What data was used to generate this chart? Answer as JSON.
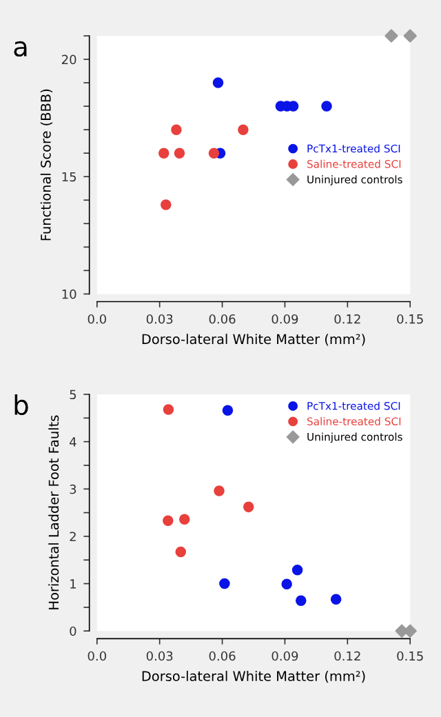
{
  "chart_data": [
    {
      "type": "scatter",
      "annotations": [
        {
          "text": "a"
        }
      ],
      "xlabel": "Dorso-lateral White Matter (mm²)",
      "ylabel": "Functional Score (BBB)",
      "xlim": [
        0,
        0.15
      ],
      "ylim": [
        10,
        21
      ],
      "xticks": [
        {
          "value": 0,
          "label": "0.0"
        },
        0.03,
        0.06,
        0.09,
        0.12,
        0.15
      ],
      "yticks": [
        10,
        {
          "value": 11,
          "label": null
        },
        {
          "value": 12,
          "label": null
        },
        {
          "value": 13,
          "label": null
        },
        {
          "value": 14,
          "label": null
        },
        15,
        {
          "value": 16,
          "label": null
        },
        {
          "value": 17,
          "label": null
        },
        {
          "value": 18,
          "label": null
        },
        {
          "value": 19,
          "label": null
        },
        20,
        {
          "value": 21,
          "label": null
        }
      ],
      "legend": "right",
      "grid": false,
      "series": [
        {
          "name": "PcTx1-treated SCI",
          "color": "#0a14e6",
          "marker": "circle",
          "x": [
            0.058,
            0.059,
            0.088,
            0.091,
            0.094,
            0.11
          ],
          "values": [
            19,
            16,
            18,
            18,
            18,
            18
          ]
        },
        {
          "name": "Saline-treated SCI",
          "color": "#e8403c",
          "marker": "circle",
          "x": [
            0.032,
            0.038,
            0.0395,
            0.033,
            0.056,
            0.07
          ],
          "values": [
            16,
            17,
            16,
            13.8,
            16,
            17
          ]
        },
        {
          "name": "Uninjured controls",
          "color": "#999999",
          "marker": "diamond",
          "x": [
            0.141,
            0.15
          ],
          "values": [
            21,
            21
          ]
        }
      ]
    },
    {
      "type": "scatter",
      "annotations": [
        {
          "text": "b"
        }
      ],
      "xlabel": "Dorso-lateral White Matter (mm²)",
      "ylabel": "Horizontal Ladder Foot Faults",
      "xlim": [
        0,
        0.15
      ],
      "ylim": [
        0,
        5
      ],
      "xticks": [
        {
          "value": 0,
          "label": "0.0"
        },
        0.03,
        0.06,
        0.09,
        0.12,
        0.15
      ],
      "yticks": [
        0,
        {
          "value": 0.5,
          "label": null
        },
        1,
        {
          "value": 1.5,
          "label": null
        },
        2,
        {
          "value": 2.5,
          "label": null
        },
        3,
        {
          "value": 3.5,
          "label": null
        },
        4,
        {
          "value": 4.5,
          "label": null
        },
        5
      ],
      "legend": "top right",
      "grid": false,
      "series": [
        {
          "name": "PcTx1-treated SCI",
          "color": "#0a14e6",
          "marker": "circle",
          "x": [
            0.0626,
            0.0611,
            0.096,
            0.0909,
            0.0977,
            0.1145
          ],
          "values": [
            4.66,
            1.0,
            1.29,
            0.99,
            0.64,
            0.67
          ]
        },
        {
          "name": "Saline-treated SCI",
          "color": "#e8403c",
          "marker": "circle",
          "x": [
            0.0342,
            0.0585,
            0.0726,
            0.034,
            0.0419,
            0.0401
          ],
          "values": [
            4.68,
            2.96,
            2.62,
            2.33,
            2.36,
            1.67
          ]
        },
        {
          "name": "Uninjured controls",
          "color": "#999999",
          "marker": "diamond",
          "x": [
            0.146,
            0.15
          ],
          "values": [
            0,
            0
          ]
        }
      ]
    }
  ]
}
